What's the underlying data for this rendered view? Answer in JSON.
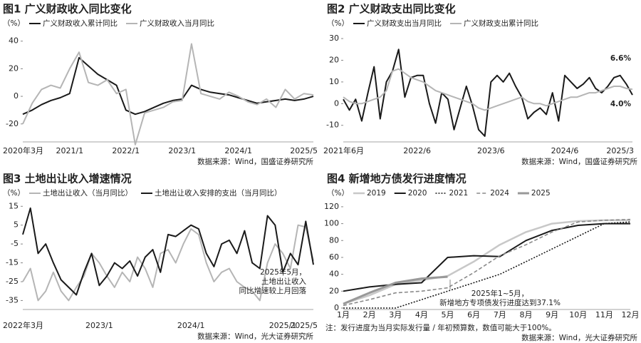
{
  "chart_data": [
    {
      "type": "line",
      "title": "图1 广义财政收入同比变化",
      "unit": "（%）",
      "source": "数据来源：Wind，国盛证券研究所",
      "categories": [
        "2020年3月",
        null,
        null,
        null,
        null,
        "2021/1",
        null,
        null,
        null,
        null,
        null,
        "2022/1",
        null,
        null,
        null,
        null,
        null,
        "2023/1",
        null,
        null,
        null,
        null,
        null,
        "2024/1",
        null,
        null,
        null,
        null,
        null,
        null,
        null,
        "2025/5"
      ],
      "series": [
        {
          "name": "广义财政收入累计同比",
          "color": "#1a1a1a",
          "width": 2,
          "values": [
            -13,
            -10,
            -6,
            -3,
            -1,
            2,
            28,
            22,
            16,
            12,
            8,
            -10,
            -13,
            -11,
            -8,
            -5,
            -3,
            -2,
            8,
            5,
            3,
            2,
            1,
            -1,
            -3,
            -5,
            -4,
            -3,
            -2,
            -3,
            -2,
            0
          ]
        },
        {
          "name": "广义财政收入当月同比",
          "color": "#b5b5b5",
          "width": 2,
          "values": [
            -20,
            -5,
            5,
            8,
            6,
            20,
            32,
            10,
            8,
            12,
            2,
            5,
            -35,
            -12,
            -10,
            -8,
            -4,
            -3,
            38,
            2,
            0,
            -2,
            3,
            0,
            -4,
            -6,
            -2,
            -8,
            5,
            -2,
            2,
            1
          ]
        }
      ],
      "ylim": [
        -32,
        45
      ],
      "yticks": [
        40,
        20,
        0,
        -20
      ]
    },
    {
      "type": "line",
      "title": "图2 广义财政支出同比变化",
      "unit": "（%）",
      "source": "数据来源：Wind，国盛证券研究所",
      "annotations": [
        "6.6%",
        "4.0%"
      ],
      "categories": [
        "2021年6月",
        null,
        null,
        null,
        null,
        null,
        null,
        null,
        null,
        null,
        null,
        null,
        "2022/6",
        null,
        null,
        null,
        null,
        null,
        null,
        null,
        null,
        null,
        null,
        null,
        "2023/6",
        null,
        null,
        null,
        null,
        null,
        null,
        null,
        null,
        null,
        null,
        null,
        "2024/6",
        null,
        null,
        null,
        null,
        null,
        null,
        null,
        null,
        "2025/3",
        null,
        null
      ],
      "series": [
        {
          "name": "广义财政支出当月同比",
          "color": "#1a1a1a",
          "width": 2,
          "values": [
            2,
            -3,
            2,
            -8,
            5,
            17,
            -7,
            10,
            15,
            25,
            3,
            12,
            13,
            13,
            0,
            -9,
            5,
            2,
            -12,
            -2,
            8,
            -1,
            -12,
            -15,
            10,
            13,
            10,
            14,
            8,
            3,
            -7,
            -4,
            -2,
            -5,
            5,
            -8,
            13,
            10,
            7,
            9,
            12,
            7,
            5,
            8,
            12,
            13,
            9,
            4.0
          ]
        },
        {
          "name": "广义财政支出累计同比",
          "color": "#b5b5b5",
          "width": 2,
          "values": [
            3,
            1,
            0,
            0,
            1,
            2,
            3,
            6,
            15,
            16,
            14,
            12,
            11,
            10,
            8,
            6,
            5,
            4,
            3,
            2,
            1,
            0,
            -2,
            -3,
            -2,
            -1,
            0,
            1,
            2,
            3,
            1,
            0,
            0,
            -1,
            0,
            1,
            2,
            3,
            3,
            4,
            5,
            5,
            6,
            7,
            8,
            8,
            7,
            6.6
          ]
        }
      ],
      "ylim": [
        -17,
        32
      ],
      "yticks": [
        30,
        20,
        10,
        0,
        -10
      ]
    },
    {
      "type": "line",
      "title": "图3 土地出让收入增速情况",
      "unit": "（%）",
      "source": "数据来源：Wind，光大证券研究所",
      "annotations": [
        "2025年5月，",
        "土地出让收入",
        "同比增速较上月回落"
      ],
      "categories": [
        "2022年3月",
        null,
        null,
        null,
        null,
        null,
        null,
        null,
        null,
        null,
        "2023/1",
        null,
        null,
        null,
        null,
        null,
        null,
        null,
        null,
        null,
        null,
        null,
        "2024/1",
        null,
        null,
        null,
        null,
        null,
        null,
        null,
        null,
        null,
        null,
        null,
        "2025/1",
        null,
        null,
        null,
        "2025/5"
      ],
      "series": [
        {
          "name": "土地出让收入（当月同比）",
          "color": "#b5b5b5",
          "width": 2,
          "values": [
            -25,
            -18,
            -35,
            -30,
            -20,
            -30,
            -35,
            -28,
            -22,
            -10,
            -15,
            -22,
            -28,
            -20,
            -25,
            -12,
            -18,
            -28,
            -10,
            -8,
            -15,
            -5,
            3,
            0,
            -15,
            -25,
            -20,
            -18,
            -25,
            -28,
            -30,
            -35,
            -15,
            -5,
            -10,
            -18,
            5,
            4,
            -14
          ]
        },
        {
          "name": "土地出让收入安排的支出（当月同比）",
          "color": "#1a1a1a",
          "width": 2,
          "values": [
            0,
            14,
            -10,
            -5,
            -15,
            -24,
            -28,
            -32,
            -20,
            -10,
            -27,
            -22,
            -15,
            -18,
            -14,
            -22,
            -12,
            -8,
            -20,
            0,
            -1,
            2,
            5,
            3,
            -10,
            -17,
            -5,
            -3,
            -10,
            2,
            -15,
            -18,
            10,
            5,
            -20,
            -10,
            -16,
            7,
            -16
          ]
        }
      ],
      "ylim": [
        -39,
        17
      ],
      "yticks": [
        15,
        5,
        -5,
        -15,
        -25,
        -35
      ]
    },
    {
      "type": "line",
      "title": "图4 新增地方债发行进度情况",
      "unit": "（%）",
      "source": "数据来源：Wind，光大证券研究所",
      "note": "注：发行进度为当月实际发行量 / 年初预算数，数值可能大于100%。",
      "annotations": [
        "2025年1~5月，",
        "新增地方专项债发行进度达到37.1%"
      ],
      "categories": [
        "1月",
        "2月",
        "3月",
        "4月",
        "5月",
        "6月",
        "7月",
        "8月",
        "9月",
        "10月",
        "11月",
        "12月"
      ],
      "series": [
        {
          "name": "2019",
          "color": "#c8c8c8",
          "width": 2.5,
          "dash": "solid",
          "values": [
            5,
            15,
            28,
            33,
            38,
            55,
            75,
            90,
            100,
            103,
            104,
            104
          ]
        },
        {
          "name": "2020",
          "color": "#1a1a1a",
          "width": 2,
          "dash": "solid",
          "values": [
            20,
            25,
            28,
            30,
            60,
            62,
            61,
            80,
            92,
            98,
            100,
            100
          ]
        },
        {
          "name": "2021",
          "color": "#1a1a1a",
          "width": 1.6,
          "dash": "dotted",
          "values": [
            0,
            0,
            0,
            10,
            20,
            30,
            40,
            55,
            70,
            85,
            100,
            102
          ]
        },
        {
          "name": "2024",
          "color": "#8a8a8a",
          "width": 1.6,
          "dash": "dashed",
          "values": [
            3,
            10,
            18,
            20,
            24,
            42,
            62,
            75,
            90,
            102,
            104,
            105
          ]
        },
        {
          "name": "2025",
          "color": "#999999",
          "width": 3,
          "dash": "solid",
          "values": [
            5,
            18,
            30,
            35,
            37.1,
            null,
            null,
            null,
            null,
            null,
            null,
            null
          ]
        }
      ],
      "ylim": [
        0,
        125
      ],
      "yticks": [
        0,
        20,
        40,
        60,
        80,
        100,
        120
      ]
    }
  ]
}
